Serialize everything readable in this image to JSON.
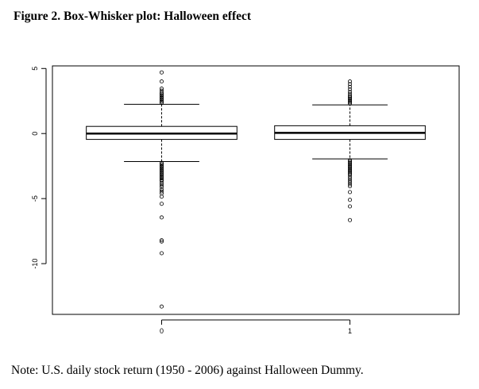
{
  "figure": {
    "title": "Figure 2. Box-Whisker plot: Halloween effect",
    "note": "Note: U.S. daily stock return (1950 - 2006) against Halloween Dummy."
  },
  "chart_data": {
    "type": "boxplot",
    "title": "Figure 2. Box-Whisker plot: Halloween effect",
    "xlabel": "",
    "ylabel": "",
    "categories": [
      "0",
      "1"
    ],
    "ylim": [
      -13.9,
      5.2
    ],
    "y_ticks": [
      5,
      0,
      -5,
      -10
    ],
    "y_tick_labels": [
      "5",
      "0",
      "-5",
      "-10"
    ],
    "grid": false,
    "legend": "none",
    "boxes": [
      {
        "category": "0",
        "whisker_low": -2.15,
        "q1": -0.45,
        "median": 0.0,
        "q3": 0.55,
        "whisker_high": 2.25,
        "outliers_high": [
          2.35,
          2.45,
          2.55,
          2.65,
          2.75,
          2.85,
          2.95,
          3.05,
          3.15,
          3.3,
          3.45,
          4.0,
          4.7
        ],
        "outliers_low": [
          -2.25,
          -2.35,
          -2.45,
          -2.55,
          -2.65,
          -2.75,
          -2.85,
          -2.95,
          -3.05,
          -3.15,
          -3.25,
          -3.35,
          -3.45,
          -3.55,
          -3.65,
          -3.8,
          -3.95,
          -4.1,
          -4.3,
          -4.45,
          -4.6,
          -4.85,
          -5.4,
          -6.45,
          -8.2,
          -8.3,
          -9.2,
          -13.3
        ]
      },
      {
        "category": "1",
        "whisker_low": -1.95,
        "q1": -0.45,
        "median": 0.05,
        "q3": 0.6,
        "whisker_high": 2.2,
        "outliers_high": [
          2.3,
          2.4,
          2.5,
          2.6,
          2.7,
          2.8,
          2.9,
          3.05,
          3.2,
          3.4,
          3.6,
          3.8,
          4.0
        ],
        "outliers_low": [
          -2.05,
          -2.15,
          -2.25,
          -2.35,
          -2.45,
          -2.55,
          -2.65,
          -2.75,
          -2.85,
          -2.95,
          -3.05,
          -3.15,
          -3.3,
          -3.45,
          -3.6,
          -3.75,
          -3.9,
          -4.05,
          -4.5,
          -5.1,
          -5.6,
          -6.65
        ]
      }
    ]
  }
}
